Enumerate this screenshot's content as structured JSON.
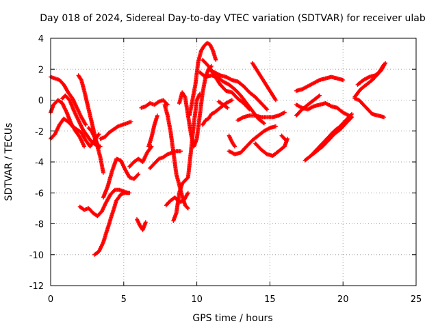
{
  "chart_data": {
    "type": "scatter",
    "title": "Day 018 of 2024, Sidereal Day-to-day VTEC variation (SDTVAR) for receiver ulab",
    "xlabel": "GPS time / hours",
    "ylabel": "SDTVAR / TECUs",
    "xlim": [
      0,
      25
    ],
    "ylim": [
      -12,
      4
    ],
    "xticks": [
      0,
      5,
      10,
      15,
      20,
      25
    ],
    "yticks": [
      -12,
      -10,
      -8,
      -6,
      -4,
      -2,
      0,
      2,
      4
    ],
    "grid": true,
    "marker": "plus",
    "color": "#ff0000",
    "series": [
      {
        "x": [
          0.0,
          0.3,
          0.6,
          0.9,
          1.2,
          1.5,
          1.8,
          2.1,
          2.4
        ],
        "y": [
          1.5,
          1.4,
          1.3,
          1.0,
          0.5,
          0.1,
          -0.5,
          -1.1,
          -1.6
        ]
      },
      {
        "x": [
          0.0,
          0.3,
          0.6,
          0.9,
          1.2,
          1.5,
          1.8,
          2.1,
          2.4,
          2.7,
          3.0,
          3.3
        ],
        "y": [
          -2.5,
          -2.2,
          -1.6,
          -1.2,
          -1.4,
          -1.7,
          -1.9,
          -2.1,
          -2.6,
          -3.0,
          -2.6,
          -2.2
        ]
      },
      {
        "x": [
          0.0,
          0.2,
          0.5,
          0.8,
          1.1,
          1.4,
          1.7,
          2.0,
          2.3
        ],
        "y": [
          -0.8,
          -0.3,
          0.0,
          -0.2,
          -0.8,
          -1.5,
          -2.0,
          -2.4,
          -3.0
        ]
      },
      {
        "x": [
          0.8,
          1.0,
          1.3,
          1.6,
          1.9,
          2.2,
          2.5,
          2.8,
          3.1,
          3.4
        ],
        "y": [
          0.1,
          0.3,
          0.0,
          -0.7,
          -1.3,
          -1.9,
          -2.3,
          -2.7,
          -2.9,
          -3.0
        ]
      },
      {
        "x": [
          1.9,
          2.1,
          2.3,
          2.5,
          2.7,
          2.9,
          3.1,
          3.3
        ],
        "y": [
          1.6,
          1.3,
          0.6,
          -0.2,
          -1.0,
          -1.8,
          -2.6,
          -3.1
        ]
      },
      {
        "x": [
          2.6,
          2.8,
          3.0,
          3.2,
          3.4,
          3.6
        ],
        "y": [
          -1.8,
          -2.0,
          -2.4,
          -3.0,
          -3.7,
          -4.7
        ]
      },
      {
        "x": [
          3.4,
          3.7,
          4.0,
          4.3,
          4.6,
          4.9,
          5.2,
          5.5
        ],
        "y": [
          -2.5,
          -2.4,
          -2.1,
          -1.9,
          -1.7,
          -1.6,
          -1.5,
          -1.4
        ]
      },
      {
        "x": [
          2.0,
          2.3,
          2.6,
          2.9,
          3.2,
          3.5,
          3.8,
          4.1,
          4.4,
          4.7,
          5.0,
          5.3
        ],
        "y": [
          -6.9,
          -7.1,
          -7.0,
          -7.3,
          -7.5,
          -7.2,
          -6.6,
          -6.1,
          -5.8,
          -5.8,
          -5.9,
          -6.0
        ]
      },
      {
        "x": [
          3.0,
          3.3,
          3.6,
          3.9,
          4.2,
          4.5,
          4.8,
          5.1,
          5.4
        ],
        "y": [
          -10.0,
          -9.8,
          -9.2,
          -8.3,
          -7.4,
          -6.5,
          -6.1,
          -6.0,
          -6.0
        ]
      },
      {
        "x": [
          3.6,
          3.9,
          4.2,
          4.5,
          4.8,
          5.1,
          5.4,
          5.7,
          6.0
        ],
        "y": [
          -6.3,
          -5.6,
          -4.6,
          -3.8,
          -3.9,
          -4.5,
          -5.0,
          -5.1,
          -4.8
        ]
      },
      {
        "x": [
          5.4,
          5.7,
          6.0,
          6.3,
          6.6,
          6.9
        ],
        "y": [
          -4.3,
          -4.0,
          -3.8,
          -4.0,
          -3.4,
          -3.0
        ]
      },
      {
        "x": [
          5.9,
          6.1,
          6.3,
          6.5
        ],
        "y": [
          -7.7,
          -8.1,
          -8.4,
          -7.9
        ]
      },
      {
        "x": [
          6.2,
          6.5,
          6.8,
          7.1,
          7.4,
          7.7,
          8.0
        ],
        "y": [
          -0.5,
          -0.4,
          -0.2,
          -0.3,
          -0.1,
          0.0,
          -0.3
        ]
      },
      {
        "x": [
          6.8,
          7.1,
          7.4,
          7.7,
          8.0,
          8.3,
          8.6,
          8.9
        ],
        "y": [
          -4.4,
          -4.1,
          -3.8,
          -3.7,
          -3.5,
          -3.4,
          -3.3,
          -3.3
        ]
      },
      {
        "x": [
          6.7,
          6.9,
          7.1,
          7.3
        ],
        "y": [
          -3.0,
          -2.4,
          -1.6,
          -1.0
        ]
      },
      {
        "x": [
          7.8,
          8.0,
          8.2,
          8.4,
          8.6,
          8.8,
          9.0,
          9.2,
          9.4
        ],
        "y": [
          -0.3,
          -1.0,
          -2.0,
          -3.4,
          -4.8,
          -5.5,
          -6.2,
          -6.8,
          -7.0
        ]
      },
      {
        "x": [
          7.9,
          8.2,
          8.5,
          8.8,
          9.1,
          9.4
        ],
        "y": [
          -6.8,
          -6.5,
          -6.3,
          -6.6,
          -6.5,
          -6.0
        ]
      },
      {
        "x": [
          8.4,
          8.6,
          8.8,
          9.0,
          9.2,
          9.4,
          9.6,
          9.8,
          10.0,
          10.2
        ],
        "y": [
          -7.8,
          -7.3,
          -6.0,
          -5.4,
          -5.2,
          -5.0,
          -3.3,
          -1.5,
          0.0,
          0.4
        ]
      },
      {
        "x": [
          8.8,
          9.0,
          9.2,
          9.4,
          9.6,
          9.8,
          10.0,
          10.2,
          10.4,
          10.6,
          10.8,
          11.0
        ],
        "y": [
          -0.2,
          0.5,
          0.2,
          -1.0,
          -2.2,
          -3.0,
          -2.5,
          -1.0,
          0.5,
          1.5,
          2.0,
          2.2
        ]
      },
      {
        "x": [
          9.5,
          9.7,
          9.9,
          10.1,
          10.3,
          10.5,
          10.7,
          10.9,
          11.1,
          11.3
        ],
        "y": [
          -1.0,
          0.0,
          1.0,
          2.5,
          3.2,
          3.5,
          3.7,
          3.6,
          3.2,
          2.6
        ]
      },
      {
        "x": [
          10.4,
          10.8,
          11.2,
          11.6,
          12.0,
          12.4,
          12.8,
          13.2,
          13.6
        ],
        "y": [
          2.6,
          2.2,
          1.6,
          1.0,
          0.6,
          0.5,
          0.1,
          -0.2,
          -0.6
        ]
      },
      {
        "x": [
          10.2,
          10.6,
          11.0,
          11.4,
          11.8,
          12.2,
          12.6,
          13.0,
          13.4,
          13.8,
          14.2,
          14.6
        ],
        "y": [
          1.8,
          1.5,
          1.6,
          1.5,
          1.2,
          1.0,
          0.7,
          0.3,
          -0.2,
          -0.7,
          -1.2,
          -1.5
        ]
      },
      {
        "x": [
          10.8,
          11.2,
          11.6,
          12.0,
          12.4,
          12.8,
          13.2,
          13.6,
          14.0,
          14.4,
          14.8
        ],
        "y": [
          2.0,
          1.8,
          1.6,
          1.5,
          1.3,
          1.2,
          0.9,
          0.5,
          0.2,
          -0.2,
          -0.6
        ]
      },
      {
        "x": [
          10.4,
          10.6,
          10.8,
          11.0,
          11.2,
          11.6,
          12.0,
          12.4
        ],
        "y": [
          -1.6,
          -1.3,
          -1.2,
          -0.9,
          -0.8,
          -0.5,
          -0.2,
          0.0
        ]
      },
      {
        "x": [
          11.5,
          11.8,
          12.1
        ],
        "y": [
          -0.1,
          -0.3,
          -0.5
        ]
      },
      {
        "x": [
          12.2,
          12.4,
          12.6
        ],
        "y": [
          -2.3,
          -2.7,
          -3.0
        ]
      },
      {
        "x": [
          12.2,
          12.6,
          13.0,
          13.4,
          13.8,
          14.2,
          14.6,
          15.0,
          15.4
        ],
        "y": [
          -3.3,
          -3.5,
          -3.4,
          -3.0,
          -2.6,
          -2.3,
          -2.0,
          -1.8,
          -1.7
        ]
      },
      {
        "x": [
          12.8,
          13.2,
          13.6,
          14.0,
          14.4,
          14.8,
          15.2,
          15.6,
          16.0
        ],
        "y": [
          -1.3,
          -1.1,
          -1.0,
          -1.0,
          -1.1,
          -1.1,
          -1.1,
          -1.0,
          -0.8
        ]
      },
      {
        "x": [
          13.8,
          14.2,
          14.6,
          15.0,
          15.4
        ],
        "y": [
          2.4,
          1.8,
          1.2,
          0.6,
          0.0
        ]
      },
      {
        "x": [
          14.0,
          14.4,
          14.8,
          15.2,
          15.6,
          16.0,
          16.2
        ],
        "y": [
          -2.8,
          -3.2,
          -3.5,
          -3.6,
          -3.3,
          -3.0,
          -2.5
        ]
      },
      {
        "x": [
          15.8,
          16.1
        ],
        "y": [
          -2.3,
          -2.6
        ]
      },
      {
        "x": [
          16.8,
          17.2,
          17.6,
          18.0,
          18.4,
          18.8,
          19.2,
          19.6,
          20.0,
          20.4,
          20.6
        ],
        "y": [
          -0.3,
          -0.5,
          -0.6,
          -0.4,
          -0.3,
          -0.2,
          -0.4,
          -0.5,
          -0.8,
          -1.0,
          -1.1
        ]
      },
      {
        "x": [
          16.8,
          17.2,
          17.6,
          18.0,
          18.4
        ],
        "y": [
          -1.0,
          -0.6,
          -0.3,
          0.0,
          0.3
        ]
      },
      {
        "x": [
          16.8,
          17.2,
          17.6,
          18.0,
          18.4,
          18.8,
          19.2,
          19.6,
          20.0
        ],
        "y": [
          0.6,
          0.7,
          0.9,
          1.1,
          1.3,
          1.4,
          1.5,
          1.4,
          1.3
        ]
      },
      {
        "x": [
          17.4,
          17.8,
          18.2,
          18.6,
          19.0,
          19.4,
          19.8,
          20.2,
          20.6
        ],
        "y": [
          -3.9,
          -3.6,
          -3.3,
          -3.0,
          -2.6,
          -2.2,
          -1.9,
          -1.5,
          -1.1
        ]
      },
      {
        "x": [
          17.8,
          18.2,
          18.6,
          19.0,
          19.4,
          19.8,
          20.2,
          20.6
        ],
        "y": [
          -3.6,
          -3.2,
          -2.8,
          -2.4,
          -2.0,
          -1.7,
          -1.3,
          -0.9
        ]
      },
      {
        "x": [
          20.8,
          21.2,
          21.6,
          22.0,
          22.4,
          22.8
        ],
        "y": [
          0.2,
          0.7,
          1.0,
          1.3,
          1.7,
          2.3
        ]
      },
      {
        "x": [
          21.0,
          21.4,
          21.8,
          22.2,
          22.6,
          22.9
        ],
        "y": [
          1.0,
          1.3,
          1.5,
          1.6,
          1.9,
          2.4
        ]
      },
      {
        "x": [
          20.8,
          21.1,
          21.4,
          21.7,
          22.0,
          22.4,
          22.8
        ],
        "y": [
          0.1,
          0.0,
          -0.3,
          -0.6,
          -0.9,
          -1.0,
          -1.1
        ]
      }
    ]
  }
}
